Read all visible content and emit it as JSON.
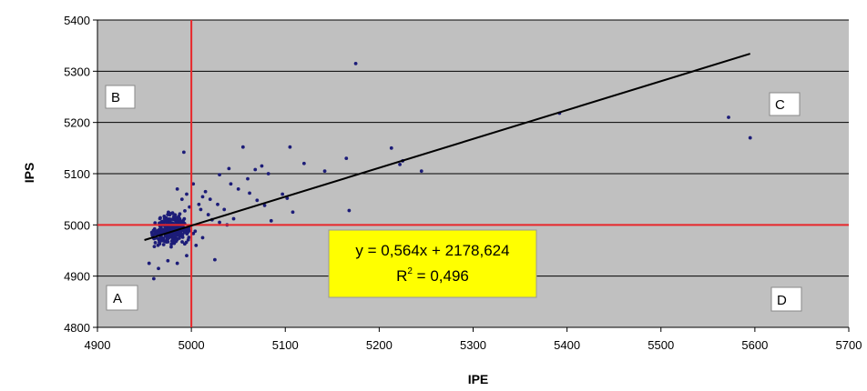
{
  "chart_data": {
    "type": "scatter",
    "title": "",
    "xlabel": "IPE",
    "ylabel": "IPS",
    "xlim": [
      4900,
      5700
    ],
    "ylim": [
      4800,
      5400
    ],
    "x_ticks": [
      4900,
      5000,
      5100,
      5200,
      5300,
      5400,
      5500,
      5600,
      5700
    ],
    "y_ticks": [
      4800,
      4900,
      5000,
      5100,
      5200,
      5300,
      5400
    ],
    "grid": "horizontal",
    "reference_lines": {
      "x": 5000,
      "y": 5000,
      "color": "#e8262a"
    },
    "trendline": {
      "slope": 0.564,
      "intercept": 2178.624,
      "x_range": [
        4950,
        5595
      ],
      "color": "#000000"
    },
    "equation": {
      "line1": "y = 0,564x + 2178,624",
      "r2_prefix": "R",
      "r2_exp": "2",
      "r2_suffix": " = 0,496"
    },
    "quadrants": {
      "A": "A",
      "B": "B",
      "C": "C",
      "D": "D"
    },
    "colors": {
      "plot_bg": "#c0c0c0",
      "point": "#1c1c78",
      "equation_bg": "#ffff00"
    },
    "cluster": {
      "center_x": 4978,
      "center_y": 4990,
      "count": 330
    },
    "points": [
      [
        5175,
        5315
      ],
      [
        5572,
        5210
      ],
      [
        5595,
        5170
      ],
      [
        5392,
        5218
      ],
      [
        5213,
        5150
      ],
      [
        5225,
        5125
      ],
      [
        5222,
        5118
      ],
      [
        5245,
        5105
      ],
      [
        5165,
        5130
      ],
      [
        5168,
        5028
      ],
      [
        5142,
        5105
      ],
      [
        5120,
        5120
      ],
      [
        5105,
        5152
      ],
      [
        5097,
        5060
      ],
      [
        5102,
        5052
      ],
      [
        5108,
        5025
      ],
      [
        5082,
        5100
      ],
      [
        5085,
        5008
      ],
      [
        5055,
        5152
      ],
      [
        5040,
        5110
      ],
      [
        5030,
        5098
      ],
      [
        5042,
        5080
      ],
      [
        5050,
        5070
      ],
      [
        5062,
        5062
      ],
      [
        5070,
        5048
      ],
      [
        5078,
        5038
      ],
      [
        5068,
        5108
      ],
      [
        5075,
        5115
      ],
      [
        5060,
        5090
      ],
      [
        5025,
        4932
      ],
      [
        4992,
        5142
      ],
      [
        5002,
        5080
      ],
      [
        5015,
        5065
      ],
      [
        5020,
        5050
      ],
      [
        5028,
        5040
      ],
      [
        5035,
        5030
      ],
      [
        5010,
        5030
      ],
      [
        5018,
        5020
      ],
      [
        5022,
        5010
      ],
      [
        5030,
        5005
      ],
      [
        5038,
        5000
      ],
      [
        5045,
        5012
      ],
      [
        5008,
        5040
      ],
      [
        5012,
        5055
      ],
      [
        4995,
        5060
      ],
      [
        4985,
        5070
      ],
      [
        4990,
        5050
      ],
      [
        4998,
        5035
      ],
      [
        4960,
        4895
      ],
      [
        4955,
        4925
      ],
      [
        4965,
        4915
      ],
      [
        4975,
        4930
      ],
      [
        4985,
        4925
      ],
      [
        4995,
        4940
      ],
      [
        5005,
        4960
      ],
      [
        5012,
        4975
      ]
    ]
  }
}
